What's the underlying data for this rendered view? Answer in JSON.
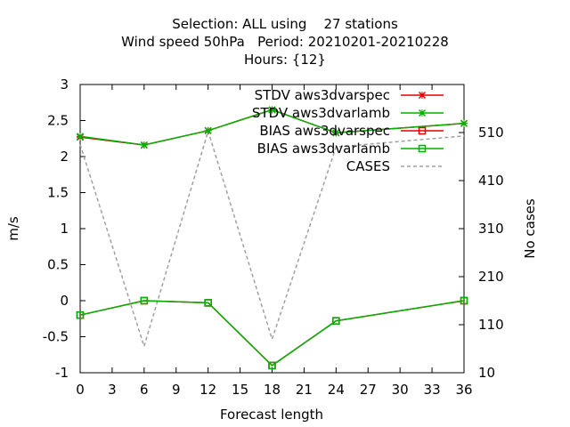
{
  "title_lines": [
    "Selection: ALL using    27 stations",
    "Wind speed 50hPa   Period: 20210201-20210228",
    "Hours: {12}"
  ],
  "chart_data": {
    "type": "line",
    "xlabel": "Forecast length",
    "ylabel": "m/s",
    "y2label": "No cases",
    "xlim": [
      0,
      36
    ],
    "ylim": [
      -1,
      3
    ],
    "y2lim": [
      10,
      610
    ],
    "x_ticks": [
      "0",
      "3",
      "6",
      "9",
      "12",
      "15",
      "18",
      "21",
      "24",
      "27",
      "30",
      "33",
      "36"
    ],
    "y_ticks": [
      "-1",
      "-0.5",
      "0",
      "0.5",
      "1",
      "1.5",
      "2",
      "2.5",
      "3"
    ],
    "y2_ticks": [
      "10",
      "110",
      "210",
      "310",
      "410",
      "510"
    ],
    "grid": false,
    "legend_position": "top-right",
    "x": [
      0,
      6,
      12,
      18,
      24,
      36
    ],
    "series": [
      {
        "name": "STDV aws3dvarspec",
        "axis": "left",
        "color": "#e00000",
        "marker": "x",
        "values": [
          2.27,
          2.16,
          2.36,
          2.65,
          2.33,
          2.46
        ]
      },
      {
        "name": "STDV aws3dvarlamb",
        "axis": "left",
        "color": "#00b000",
        "marker": "x",
        "values": [
          2.28,
          2.16,
          2.36,
          2.65,
          2.33,
          2.46
        ]
      },
      {
        "name": "BIAS aws3dvarspec",
        "axis": "left",
        "color": "#e00000",
        "marker": "square",
        "values": [
          -0.2,
          0.0,
          -0.03,
          -0.9,
          -0.28,
          0.0
        ]
      },
      {
        "name": "BIAS aws3dvarlamb",
        "axis": "left",
        "color": "#00b000",
        "marker": "square",
        "values": [
          -0.2,
          0.0,
          -0.03,
          -0.9,
          -0.28,
          0.0
        ]
      },
      {
        "name": "CASES",
        "axis": "right",
        "color": "#a0a0a0",
        "marker": "none",
        "dashed": true,
        "values": [
          485,
          65,
          513,
          80,
          480,
          503
        ]
      }
    ]
  }
}
